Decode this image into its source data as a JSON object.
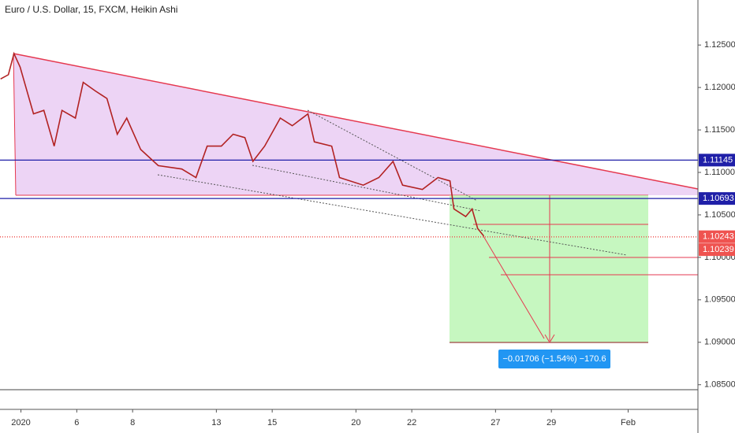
{
  "chart_data": {
    "type": "line",
    "title": "Euro / U.S. Dollar, 15, FXCM, Heikin Ashi",
    "x": [
      -0.73,
      -0.45,
      -0.25,
      -0.03,
      0.25,
      0.45,
      0.82,
      1.19,
      1.47,
      1.95,
      2.23,
      2.66,
      3.08,
      3.45,
      3.79,
      4.29,
      4.92,
      5.76,
      6.27,
      6.67,
      7.18,
      7.6,
      8.02,
      8.31,
      8.73,
      9.29,
      9.72,
      10.28,
      10.51,
      11.13,
      11.41,
      12.26,
      12.82,
      13.33,
      13.67,
      14.38,
      14.94,
      15.37,
      15.51,
      15.93,
      16.16,
      16.36,
      16.58
    ],
    "series": [
      {
        "name": "EURUSD",
        "color": "#b22222",
        "values": [
          1.121,
          1.1215,
          1.124,
          1.1224,
          1.1192,
          1.1169,
          1.1173,
          1.1131,
          1.1173,
          1.1164,
          1.1206,
          1.1196,
          1.1187,
          1.1145,
          1.1164,
          1.1127,
          1.1108,
          1.1104,
          1.1094,
          1.1131,
          1.1131,
          1.1145,
          1.1141,
          1.1113,
          1.1131,
          1.1164,
          1.1155,
          1.1169,
          1.1136,
          1.1131,
          1.1094,
          1.1085,
          1.1094,
          1.1113,
          1.1085,
          1.108,
          1.1094,
          1.109,
          1.1057,
          1.1048,
          1.1057,
          1.1034,
          1.1025
        ]
      }
    ],
    "xlim": [
      -0.75,
      24.25
    ],
    "xticks": [
      {
        "value": 0,
        "label": "2020"
      },
      {
        "value": 2,
        "label": "6"
      },
      {
        "value": 4,
        "label": "8"
      },
      {
        "value": 7,
        "label": "13"
      },
      {
        "value": 9,
        "label": "15"
      },
      {
        "value": 12,
        "label": "20"
      },
      {
        "value": 14,
        "label": "22"
      },
      {
        "value": 17,
        "label": "27"
      },
      {
        "value": 19,
        "label": "29"
      },
      {
        "value": 21.75,
        "label": "Feb"
      }
    ],
    "ylim": [
      1.0821,
      1.1303
    ],
    "yticks": [
      {
        "value": 1.125,
        "label": "1.12500"
      },
      {
        "value": 1.12,
        "label": "1.12000"
      },
      {
        "value": 1.115,
        "label": "1.11500"
      },
      {
        "value": 1.11,
        "label": "1.11000"
      },
      {
        "value": 1.105,
        "label": "1.10500"
      },
      {
        "value": 1.1,
        "label": "1.10000"
      },
      {
        "value": 1.095,
        "label": "1.09500"
      },
      {
        "value": 1.09,
        "label": "1.09000"
      },
      {
        "value": 1.085,
        "label": "1.08500"
      }
    ],
    "price_markers": [
      {
        "value": 1.11145,
        "color": "#1f1fa8"
      },
      {
        "value": 1.10693,
        "color": "#1f1fa8"
      },
      {
        "value": 1.10243,
        "color": "#ef5350"
      },
      {
        "value": 1.10239,
        "color": "#ef5350"
      }
    ],
    "measure_label": "−0.01706 (−1.54%) −170.6"
  }
}
